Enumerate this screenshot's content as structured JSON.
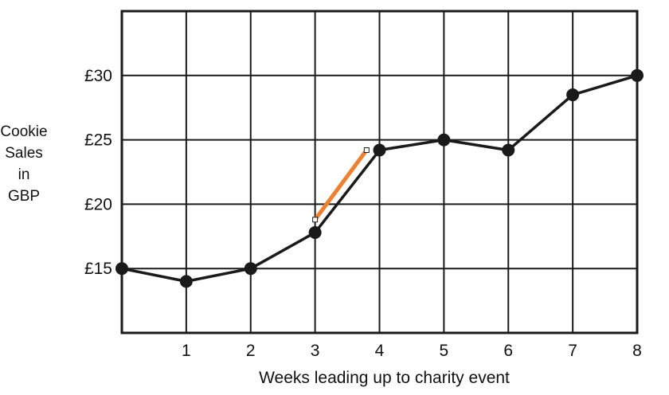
{
  "chart_data": {
    "type": "line",
    "xlabel": "Weeks leading up to charity event",
    "ylabel_lines": [
      "Cookie",
      "Sales",
      "in",
      "GBP"
    ],
    "x_ticks": [
      "1",
      "2",
      "3",
      "4",
      "5",
      "6",
      "7",
      "8"
    ],
    "y_ticks": [
      "£15",
      "£20",
      "£25",
      "£30"
    ],
    "xlim": [
      0,
      8
    ],
    "ylim": [
      10,
      35
    ],
    "grid": true,
    "series": [
      {
        "x": [
          0,
          1,
          2,
          3,
          4,
          5,
          6,
          7,
          8
        ],
        "values": [
          15,
          14,
          15,
          17.8,
          24.2,
          25,
          24.2,
          28.5,
          30
        ],
        "color": "#1a1a1a"
      }
    ],
    "highlight": {
      "x": [
        3,
        3.8
      ],
      "values": [
        18.8,
        24.2
      ],
      "color": "#f08030"
    }
  }
}
